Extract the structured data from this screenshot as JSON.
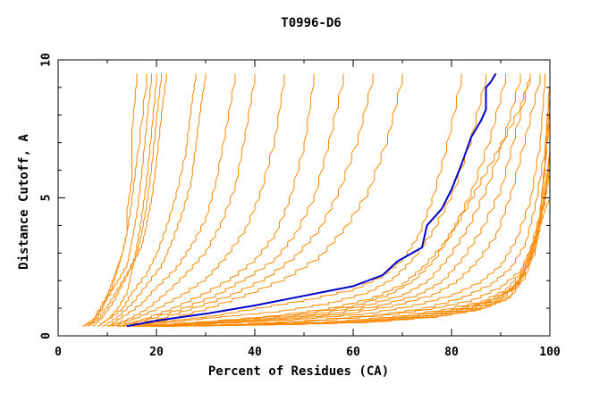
{
  "chart_data": {
    "type": "line",
    "title": "T0996-D6",
    "xlabel": "Percent of Residues (CA)",
    "ylabel": "Distance Cutoff, A",
    "xlim": [
      0,
      100
    ],
    "ylim": [
      0,
      10
    ],
    "x_ticks": [
      "0",
      "20",
      "40",
      "60",
      "80",
      "100"
    ],
    "y_ticks": [
      "0",
      "5",
      "10"
    ],
    "grid": false,
    "legend": "none",
    "colors": {
      "highlight": "#0000cc",
      "others": "#ff8800",
      "axis": "#000000"
    },
    "highlight_series": {
      "x": [
        14,
        20,
        30,
        40,
        50,
        60,
        66,
        69,
        71,
        74,
        75,
        78,
        80,
        82,
        84,
        86,
        87,
        87,
        88,
        89
      ],
      "y": [
        0.35,
        0.55,
        0.8,
        1.1,
        1.45,
        1.8,
        2.2,
        2.7,
        2.9,
        3.2,
        4.0,
        4.6,
        5.3,
        6.2,
        7.2,
        7.8,
        8.2,
        9.0,
        9.2,
        9.5
      ]
    },
    "series_groups": [
      {
        "name": "steep",
        "curves": [
          {
            "x": [
              5,
              7,
              9,
              10,
              11,
              12,
              13,
              14,
              15,
              16,
              18
            ],
            "y": [
              0.35,
              0.6,
              1.0,
              1.5,
              2.0,
              2.5,
              3.0,
              3.8,
              5.0,
              6.5,
              9.5
            ]
          },
          {
            "x": [
              6,
              8,
              9,
              11,
              12,
              13,
              14,
              14,
              15,
              15,
              16
            ],
            "y": [
              0.35,
              0.7,
              1.2,
              1.8,
              2.4,
              3.0,
              3.8,
              4.6,
              5.8,
              7.5,
              9.5
            ]
          },
          {
            "x": [
              5,
              7,
              8,
              10,
              12,
              14,
              15,
              16,
              17,
              18,
              19
            ],
            "y": [
              0.35,
              0.5,
              0.9,
              1.4,
              2.0,
              2.6,
              3.5,
              4.5,
              6.0,
              7.8,
              9.5
            ]
          },
          {
            "x": [
              6,
              8,
              10,
              12,
              14,
              16,
              17,
              18,
              19,
              20,
              21
            ],
            "y": [
              0.35,
              0.6,
              1.1,
              1.7,
              2.3,
              3.0,
              3.8,
              4.8,
              6.2,
              8.0,
              9.5
            ]
          },
          {
            "x": [
              7,
              9,
              11,
              13,
              15,
              17,
              18,
              19,
              20,
              21,
              22
            ],
            "y": [
              0.35,
              0.7,
              1.2,
              1.9,
              2.6,
              3.3,
              4.1,
              5.0,
              6.4,
              8.1,
              9.5
            ]
          },
          {
            "x": [
              8,
              10,
              12,
              14,
              15,
              16,
              17,
              18,
              19,
              20
            ],
            "y": [
              0.35,
              0.6,
              1.0,
              1.6,
              2.4,
              3.3,
              4.4,
              5.7,
              7.5,
              9.5
            ]
          },
          {
            "x": [
              8,
              10,
              13,
              15,
              18,
              20,
              22,
              24,
              26,
              27,
              28
            ],
            "y": [
              0.35,
              0.6,
              1.0,
              1.6,
              2.3,
              3.0,
              4.0,
              5.2,
              6.8,
              8.3,
              9.5
            ]
          },
          {
            "x": [
              9,
              12,
              15,
              18,
              21,
              23,
              25,
              27,
              28,
              29,
              30
            ],
            "y": [
              0.35,
              0.7,
              1.2,
              1.9,
              2.6,
              3.4,
              4.4,
              5.6,
              7.0,
              8.4,
              9.5
            ]
          },
          {
            "x": [
              10,
              13,
              17,
              20,
              24,
              27,
              30,
              32,
              34,
              36
            ],
            "y": [
              0.35,
              0.7,
              1.2,
              1.8,
              2.5,
              3.3,
              4.3,
              5.6,
              7.5,
              9.5
            ]
          },
          {
            "x": [
              10,
              14,
              18,
              22,
              26,
              30,
              33,
              36,
              38,
              40
            ],
            "y": [
              0.35,
              0.6,
              1.0,
              1.6,
              2.3,
              3.1,
              4.1,
              5.5,
              7.4,
              9.5
            ]
          },
          {
            "x": [
              11,
              15,
              20,
              25,
              30,
              34,
              38,
              41,
              44,
              46
            ],
            "y": [
              0.35,
              0.6,
              1.0,
              1.5,
              2.1,
              2.9,
              3.9,
              5.2,
              7.2,
              9.5
            ]
          },
          {
            "x": [
              12,
              17,
              23,
              29,
              35,
              40,
              44,
              47,
              50,
              52
            ],
            "y": [
              0.35,
              0.6,
              1.0,
              1.5,
              2.1,
              2.8,
              3.7,
              5.0,
              7.0,
              9.5
            ]
          },
          {
            "x": [
              12,
              18,
              25,
              32,
              38,
              44,
              48,
              52,
              55,
              58
            ],
            "y": [
              0.35,
              0.6,
              1.0,
              1.5,
              2.1,
              2.8,
              3.7,
              5.1,
              7.1,
              9.5
            ]
          },
          {
            "x": [
              13,
              20,
              27,
              35,
              42,
              48,
              53,
              57,
              61,
              64
            ],
            "y": [
              0.35,
              0.6,
              1.0,
              1.5,
              2.1,
              2.9,
              3.9,
              5.3,
              7.3,
              9.5
            ]
          },
          {
            "x": [
              14,
              22,
              30,
              38,
              46,
              53,
              58,
              63,
              67,
              70
            ],
            "y": [
              0.35,
              0.6,
              1.0,
              1.5,
              2.1,
              2.9,
              3.9,
              5.3,
              7.3,
              9.5
            ]
          }
        ]
      },
      {
        "name": "flat",
        "curves": [
          {
            "x": [
              12,
              20,
              30,
              40,
              50,
              60,
              66,
              70,
              73,
              76,
              79,
              82
            ],
            "y": [
              0.35,
              0.5,
              0.7,
              1.0,
              1.3,
              1.7,
              2.2,
              2.8,
              3.6,
              5.0,
              7.0,
              9.5
            ]
          },
          {
            "x": [
              13,
              22,
              33,
              45,
              55,
              63,
              68,
              72,
              76,
              80,
              84,
              87
            ],
            "y": [
              0.35,
              0.5,
              0.7,
              0.9,
              1.2,
              1.6,
              2.1,
              2.8,
              3.8,
              5.2,
              7.3,
              9.5
            ]
          },
          {
            "x": [
              14,
              25,
              37,
              49,
              60,
              67,
              72,
              76,
              80,
              84,
              88,
              91
            ],
            "y": [
              0.35,
              0.45,
              0.6,
              0.8,
              1.1,
              1.5,
              2.0,
              2.7,
              3.8,
              5.3,
              7.4,
              9.5
            ]
          },
          {
            "x": [
              15,
              27,
              40,
              52,
              62,
              70,
              75,
              79,
              83,
              87,
              91,
              94
            ],
            "y": [
              0.35,
              0.45,
              0.6,
              0.8,
              1.1,
              1.5,
              2.0,
              2.8,
              3.9,
              5.4,
              7.5,
              9.5
            ]
          },
          {
            "x": [
              16,
              28,
              42,
              55,
              65,
              73,
              78,
              82,
              86,
              90,
              93,
              96
            ],
            "y": [
              0.35,
              0.45,
              0.6,
              0.8,
              1.1,
              1.5,
              2.0,
              2.8,
              3.9,
              5.4,
              7.5,
              9.5
            ]
          },
          {
            "x": [
              16,
              30,
              45,
              58,
              68,
              76,
              81,
              85,
              89,
              92,
              95,
              98
            ],
            "y": [
              0.35,
              0.45,
              0.6,
              0.8,
              1.1,
              1.5,
              2.0,
              2.7,
              3.7,
              5.2,
              7.3,
              9.5
            ]
          },
          {
            "x": [
              17,
              32,
              48,
              62,
              72,
              80,
              86,
              90,
              93,
              96,
              98,
              99
            ],
            "y": [
              0.35,
              0.45,
              0.6,
              0.8,
              1.1,
              1.5,
              2.0,
              2.6,
              3.5,
              5.0,
              7.1,
              9.5
            ]
          },
          {
            "x": [
              17,
              33,
              50,
              64,
              74,
              82,
              88,
              92,
              95,
              97,
              99,
              100
            ],
            "y": [
              0.35,
              0.4,
              0.55,
              0.75,
              1.0,
              1.4,
              1.9,
              2.5,
              3.4,
              4.8,
              6.9,
              9.5
            ]
          },
          {
            "x": [
              18,
              35,
              52,
              66,
              76,
              84,
              90,
              94,
              96,
              98,
              99,
              100
            ],
            "y": [
              0.35,
              0.4,
              0.55,
              0.75,
              1.0,
              1.3,
              1.8,
              2.4,
              3.2,
              4.5,
              6.5,
              9.0
            ]
          },
          {
            "x": [
              18,
              36,
              54,
              68,
              78,
              86,
              91,
              94,
              96,
              98,
              99,
              100
            ],
            "y": [
              0.35,
              0.4,
              0.5,
              0.7,
              0.95,
              1.25,
              1.7,
              2.3,
              3.1,
              4.3,
              6.2,
              8.5
            ]
          },
          {
            "x": [
              19,
              38,
              56,
              70,
              80,
              87,
              92,
              95,
              97,
              98,
              99,
              100
            ],
            "y": [
              0.35,
              0.4,
              0.5,
              0.7,
              0.95,
              1.25,
              1.7,
              2.4,
              3.3,
              4.6,
              6.4,
              8.0
            ]
          },
          {
            "x": [
              19,
              39,
              58,
              72,
              81,
              88,
              93,
              95,
              97,
              99,
              100
            ],
            "y": [
              0.35,
              0.4,
              0.5,
              0.7,
              0.95,
              1.3,
              1.8,
              2.6,
              3.6,
              5.0,
              7.0
            ]
          },
          {
            "x": [
              20,
              40,
              59,
              73,
              82,
              89,
              93,
              96,
              98,
              99,
              100
            ],
            "y": [
              0.35,
              0.4,
              0.5,
              0.7,
              0.95,
              1.3,
              1.9,
              2.8,
              4.0,
              5.5,
              6.5
            ]
          },
          {
            "x": [
              20,
              41,
              60,
              74,
              83,
              89,
              94,
              96,
              98,
              99,
              100
            ],
            "y": [
              0.35,
              0.4,
              0.5,
              0.7,
              0.95,
              1.3,
              2.0,
              3.0,
              4.2,
              5.0,
              6.0
            ]
          },
          {
            "x": [
              21,
              42,
              61,
              75,
              84,
              90,
              94,
              97,
              98,
              99,
              100
            ],
            "y": [
              0.35,
              0.4,
              0.5,
              0.7,
              0.95,
              1.35,
              2.1,
              3.1,
              4.0,
              4.6,
              5.0
            ]
          },
          {
            "x": [
              21,
              43,
              62,
              76,
              85,
              91,
              95,
              97,
              98,
              99,
              100
            ],
            "y": [
              0.35,
              0.4,
              0.5,
              0.7,
              0.95,
              1.35,
              2.2,
              3.3,
              4.3,
              5.2,
              6.2
            ]
          },
          {
            "x": [
              22,
              44,
              63,
              77,
              86,
              92,
              95,
              97,
              99,
              100
            ],
            "y": [
              0.35,
              0.4,
              0.5,
              0.7,
              1.0,
              1.45,
              2.4,
              3.6,
              5.0,
              6.8
            ]
          },
          {
            "x": [
              15,
              28,
              42,
              55,
              64,
              70,
              74,
              78,
              82,
              86,
              90,
              94,
              96
            ],
            "y": [
              0.35,
              0.5,
              0.7,
              1.0,
              1.4,
              1.9,
              2.5,
              3.3,
              4.4,
              5.7,
              7.0,
              8.4,
              9.5
            ]
          }
        ]
      }
    ]
  }
}
